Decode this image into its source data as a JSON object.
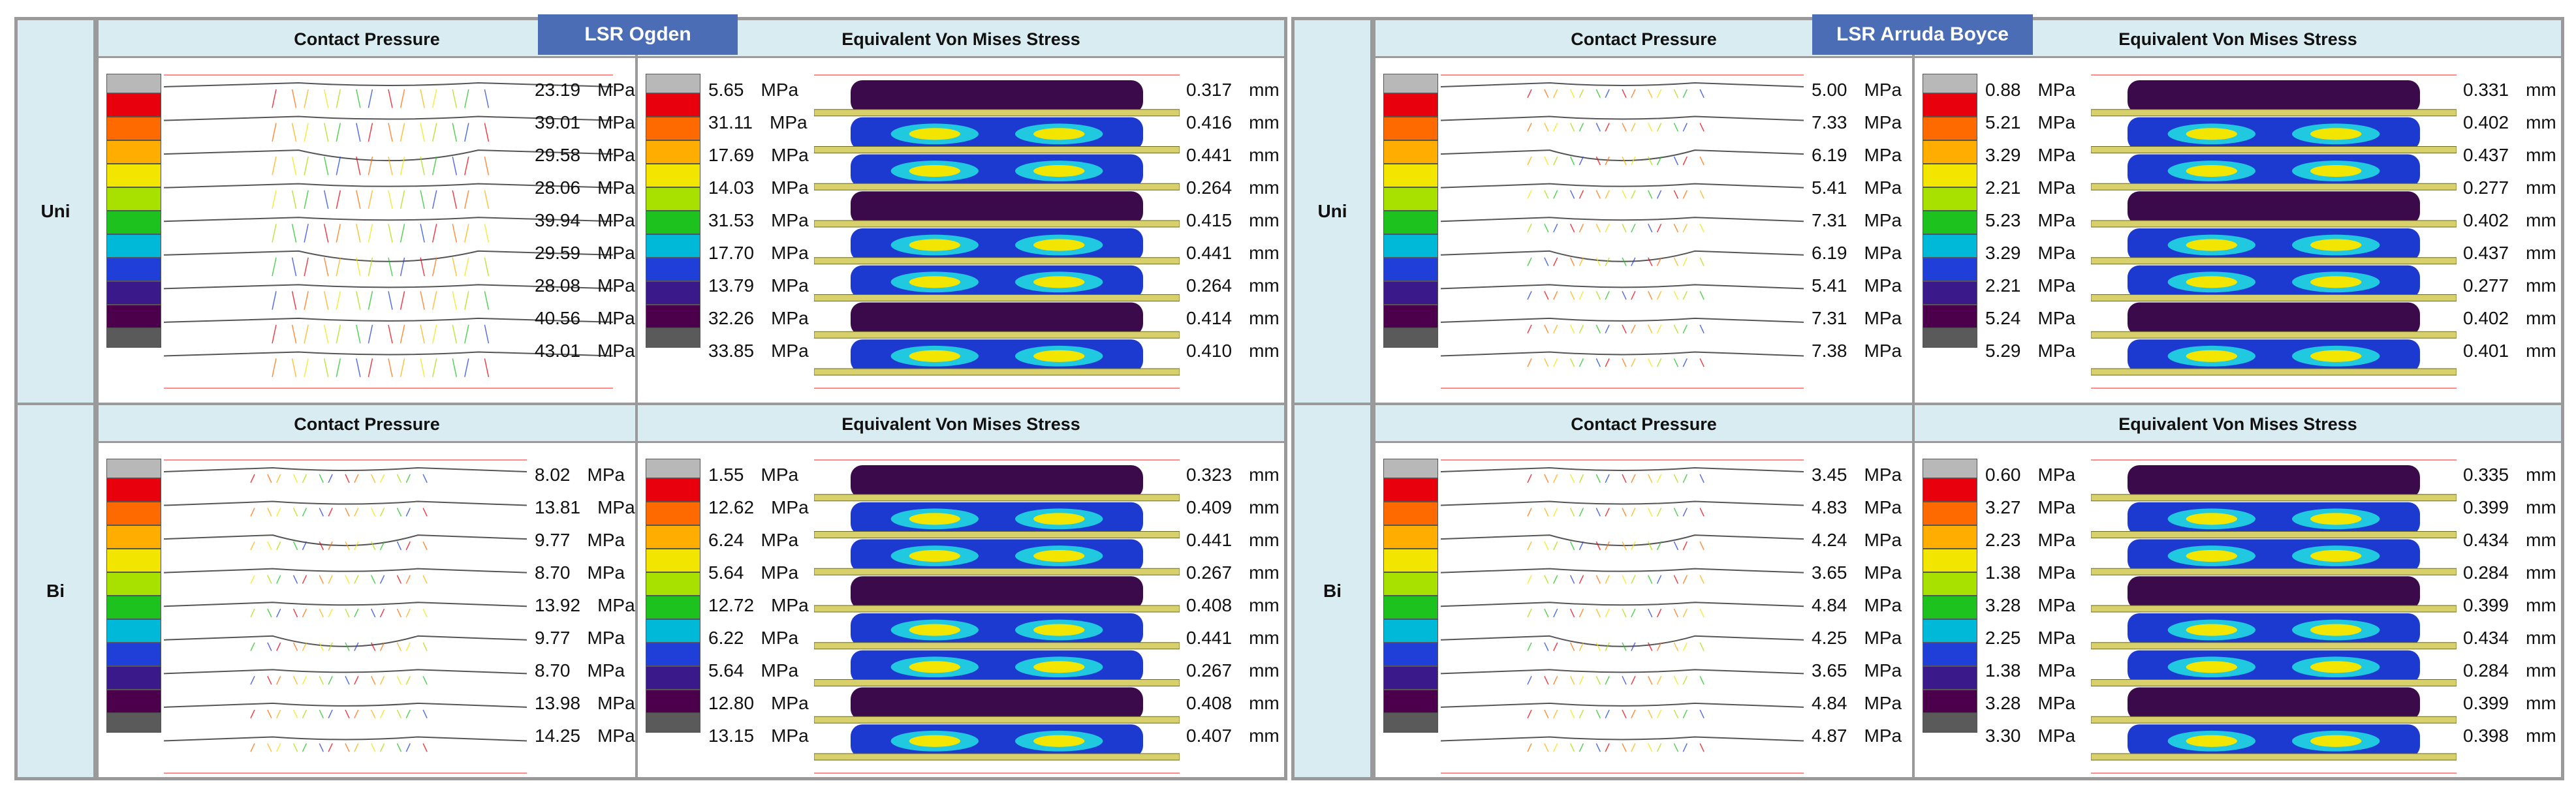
{
  "models": [
    {
      "title": "LSR Ogden",
      "rows": [
        {
          "label": "Uni",
          "cp_title": "Contact Pressure",
          "vm_title": "Equivalent Von  Mises Stress",
          "cp": [
            "23.19",
            "39.01",
            "29.58",
            "28.06",
            "39.94",
            "29.59",
            "28.08",
            "40.56",
            "43.01"
          ],
          "vm_p": [
            "5.65",
            "31.11",
            "17.69",
            "14.03",
            "31.53",
            "17.70",
            "13.79",
            "32.26",
            "33.85"
          ],
          "vm_d": [
            "0.317",
            "0.416",
            "0.441",
            "0.264",
            "0.415",
            "0.441",
            "0.264",
            "0.414",
            "0.410"
          ]
        },
        {
          "label": "Bi",
          "cp_title": "Contact Pressure",
          "vm_title": "Equivalent Von  Mises Stress",
          "cp": [
            "8.02",
            "13.81",
            "9.77",
            "8.70",
            "13.92",
            "9.77",
            "8.70",
            "13.98",
            "14.25"
          ],
          "vm_p": [
            "1.55",
            "12.62",
            "6.24",
            "5.64",
            "12.72",
            "6.22",
            "5.64",
            "12.80",
            "13.15"
          ],
          "vm_d": [
            "0.323",
            "0.409",
            "0.441",
            "0.267",
            "0.408",
            "0.441",
            "0.267",
            "0.408",
            "0.407"
          ]
        }
      ]
    },
    {
      "title": "LSR Arruda Boyce",
      "rows": [
        {
          "label": "Uni",
          "cp_title": "Contact Pressure",
          "vm_title": "Equivalent Von  Mises Stress",
          "cp": [
            "5.00",
            "7.33",
            "6.19",
            "5.41",
            "7.31",
            "6.19",
            "5.41",
            "7.31",
            "7.38"
          ],
          "vm_p": [
            "0.88",
            "5.21",
            "3.29",
            "2.21",
            "5.23",
            "3.29",
            "2.21",
            "5.24",
            "5.29"
          ],
          "vm_d": [
            "0.331",
            "0.402",
            "0.437",
            "0.277",
            "0.402",
            "0.437",
            "0.277",
            "0.402",
            "0.401"
          ]
        },
        {
          "label": "Bi",
          "cp_title": "Contact Pressure",
          "vm_title": "Equivalent Von  Mises Stress",
          "cp": [
            "3.45",
            "4.83",
            "4.24",
            "3.65",
            "4.84",
            "4.25",
            "3.65",
            "4.84",
            "4.87"
          ],
          "vm_p": [
            "0.60",
            "3.27",
            "2.23",
            "1.38",
            "3.28",
            "2.25",
            "1.38",
            "3.28",
            "3.30"
          ],
          "vm_d": [
            "0.335",
            "0.399",
            "0.434",
            "0.284",
            "0.399",
            "0.434",
            "0.284",
            "0.399",
            "0.398"
          ]
        }
      ]
    }
  ],
  "units": {
    "pressure": "MPa",
    "displacement": "mm"
  },
  "legend_colors": [
    "#b8b8b8",
    "#e8000c",
    "#ff6a00",
    "#ffae00",
    "#f2e600",
    "#a8e000",
    "#1ec21e",
    "#00b8d8",
    "#1f3fd8",
    "#3a1a8a",
    "#4c004c",
    "#5a5a5a"
  ]
}
